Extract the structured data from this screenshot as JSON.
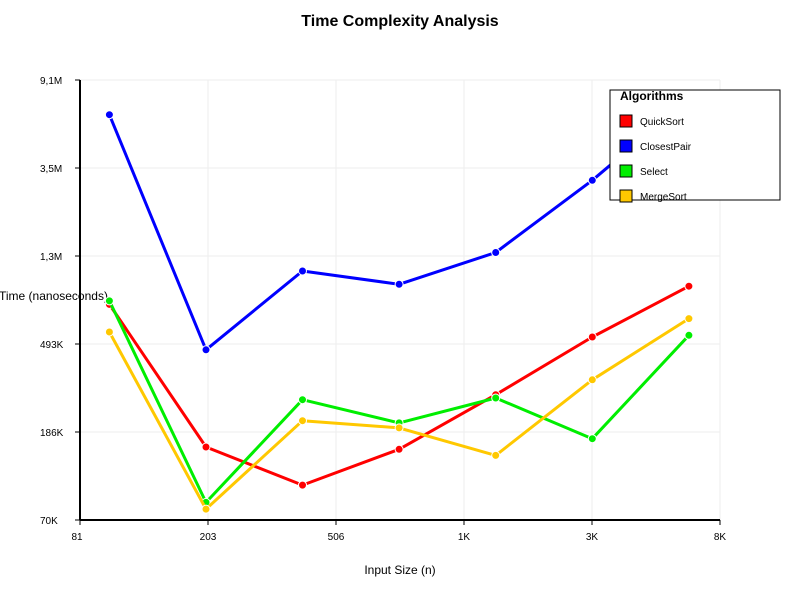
{
  "chart_data": {
    "type": "line",
    "title": "Time Complexity Analysis",
    "xlabel": "Input Size (n)",
    "ylabel": "Time (nanoseconds)",
    "xscale": "log",
    "yscale": "log",
    "xlim": [
      81,
      8000
    ],
    "ylim": [
      70000,
      9100000
    ],
    "xticks": [
      81,
      203,
      506,
      1000,
      3000,
      8000
    ],
    "xtick_labels": [
      "81",
      "203",
      "506",
      "1K",
      "3K",
      "8K"
    ],
    "yticks": [
      70000,
      186000,
      493000,
      1300000,
      3500000,
      9100000
    ],
    "ytick_labels": [
      "70K",
      "186K",
      "493K",
      "1,3M",
      "3,5M",
      "9,1M"
    ],
    "grid": true,
    "legend_title": "Algorithms",
    "legend_position": "top-right",
    "x": [
      100,
      200,
      400,
      800,
      1600,
      3200,
      6400
    ],
    "series": [
      {
        "name": "QuickSort",
        "color": "#ff0000",
        "values": [
          760000,
          157000,
          103000,
          153000,
          280000,
          530000,
          930000
        ]
      },
      {
        "name": "ClosestPair",
        "color": "#0000ff",
        "values": [
          6200000,
          460000,
          1100000,
          950000,
          1350000,
          3000000,
          7400000
        ]
      },
      {
        "name": "Select",
        "color": "#00ee00",
        "values": [
          790000,
          85000,
          265000,
          205000,
          270000,
          172000,
          540000
        ]
      },
      {
        "name": "MergeSort",
        "color": "#ffc800",
        "values": [
          560000,
          79000,
          210000,
          194000,
          143000,
          330000,
          650000
        ]
      }
    ]
  }
}
